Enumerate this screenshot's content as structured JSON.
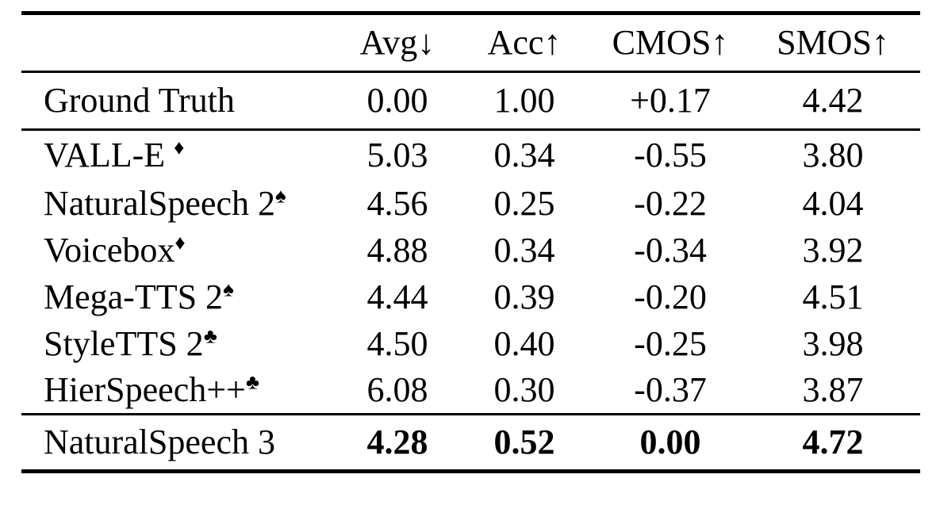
{
  "table": {
    "columns": [
      "",
      "Avg↓",
      "Acc↑",
      "CMOS↑",
      "SMOS↑"
    ],
    "rows": [
      {
        "label": "Ground Truth",
        "sup": "",
        "values": [
          "0.00",
          "1.00",
          "+0.17",
          "4.42"
        ]
      },
      {
        "label": "VALL-E ",
        "sup": "♦",
        "values": [
          "5.03",
          "0.34",
          "-0.55",
          "3.80"
        ]
      },
      {
        "label": "NaturalSpeech 2",
        "sup": "♠",
        "values": [
          "4.56",
          "0.25",
          "-0.22",
          "4.04"
        ]
      },
      {
        "label": "Voicebox",
        "sup": "♦",
        "values": [
          "4.88",
          "0.34",
          "-0.34",
          "3.92"
        ]
      },
      {
        "label": "Mega-TTS 2",
        "sup": "♠",
        "values": [
          "4.44",
          "0.39",
          "-0.20",
          "4.51"
        ]
      },
      {
        "label": "StyleTTS 2",
        "sup": "♣",
        "values": [
          "4.50",
          "0.40",
          "-0.25",
          "3.98"
        ]
      },
      {
        "label": "HierSpeech++",
        "sup": "♣",
        "values": [
          "6.08",
          "0.30",
          "-0.37",
          "3.87"
        ]
      },
      {
        "label": "NaturalSpeech 3",
        "sup": "",
        "values": [
          "4.28",
          "0.52",
          "0.00",
          "4.72"
        ]
      }
    ],
    "colors": {
      "text": "#000000",
      "background": "#ffffff",
      "rule": "#000000"
    }
  }
}
